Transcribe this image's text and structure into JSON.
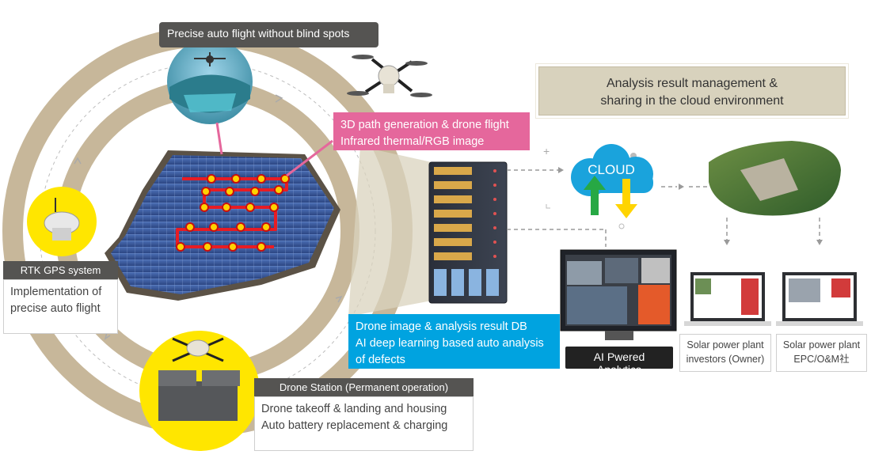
{
  "flight_label": "Precise auto flight without blind spots",
  "path_label": {
    "line1": "3D path generation & drone flight",
    "line2": "Infrared thermal/RGB image"
  },
  "rtk": {
    "header": "RTK GPS system",
    "line1": "Implementation of",
    "line2": "precise auto flight"
  },
  "station": {
    "header": "Drone Station (Permanent operation)",
    "line1": "Drone takeoff & landing and housing",
    "line2": "Auto battery replacement & charging"
  },
  "db_label": {
    "line1": "Drone image & analysis result DB",
    "line2": "AI deep learning based auto analysis",
    "line3": "of defects"
  },
  "cloud_box": {
    "line1": "Analysis result management &",
    "line2": "sharing in the cloud environment"
  },
  "cloud_text": "CLOUD",
  "ai_label": "AI Pwered Analytics",
  "investors": {
    "line1": "Solar power plant",
    "line2": "investors (Owner)"
  },
  "epc": {
    "line1": "Solar power plant",
    "line2": "EPC/O&M社"
  },
  "colors": {
    "ring": "#c7b79a",
    "pink": "#e5679c",
    "blue": "#00a3e0",
    "yellow": "#ffe600",
    "dark": "#555452",
    "cloud": "#1aa3dc",
    "arrow_up": "#27a844",
    "arrow_down": "#ffd400"
  }
}
